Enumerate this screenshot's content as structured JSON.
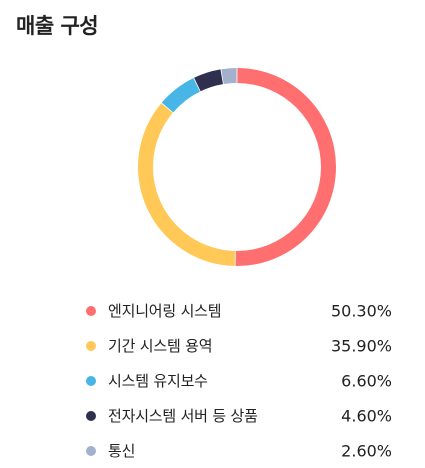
{
  "header": {
    "title": "매출 구성"
  },
  "chart_data": {
    "type": "pie",
    "title": "매출 구성",
    "legend_position": "bottom",
    "donut": true,
    "series": [
      {
        "name": "엔지니어링 시스템",
        "value": 50.3,
        "value_label": "50.30%",
        "color": "#FF6F6F"
      },
      {
        "name": "기간 시스템 용역",
        "value": 35.9,
        "value_label": "35.90%",
        "color": "#FFC857"
      },
      {
        "name": "시스템 유지보수",
        "value": 6.6,
        "value_label": "6.60%",
        "color": "#47B6E6"
      },
      {
        "name": "전자시스템 서버 등 상품",
        "value": 4.6,
        "value_label": "4.60%",
        "color": "#2F3050"
      },
      {
        "name": "통신",
        "value": 2.6,
        "value_label": "2.60%",
        "color": "#A3B1CD"
      }
    ]
  }
}
